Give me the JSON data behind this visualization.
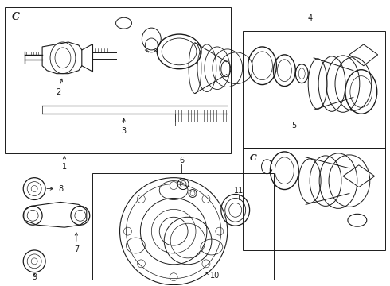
{
  "bg_color": "#ffffff",
  "line_color": "#1a1a1a",
  "fig_w": 4.9,
  "fig_h": 3.6
}
